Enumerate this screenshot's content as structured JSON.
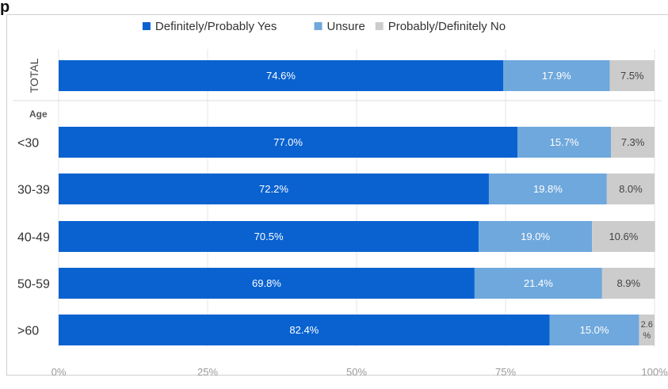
{
  "page": {
    "title_fragment": "p"
  },
  "colors": {
    "yes": "#0a62d0",
    "unsure": "#6fa8dc",
    "no": "#cccccc",
    "grid": "#e4e4e4"
  },
  "chart_data": {
    "type": "bar",
    "orientation": "horizontal",
    "stacked": true,
    "title": "",
    "legend_position": "top",
    "xlim": [
      0,
      100
    ],
    "x_ticks": [
      "0%",
      "25%",
      "50%",
      "75%",
      "100%"
    ],
    "group_labels": {
      "total": "TOTAL",
      "age": "Age"
    },
    "categories": [
      "TOTAL",
      "<30",
      "30-39",
      "40-49",
      "50-59",
      ">60"
    ],
    "series": [
      {
        "name": "Definitely/Probably Yes",
        "key": "yes",
        "values": [
          74.6,
          77.0,
          72.2,
          70.5,
          69.8,
          82.4
        ],
        "labels": [
          "74.6%",
          "77.0%",
          "72.2%",
          "70.5%",
          "69.8%",
          "82.4%"
        ]
      },
      {
        "name": "Unsure",
        "key": "unsure",
        "values": [
          17.9,
          15.7,
          19.8,
          19.0,
          21.4,
          15.0
        ],
        "labels": [
          "17.9%",
          "15.7%",
          "19.8%",
          "19.0%",
          "21.4%",
          "15.0%"
        ]
      },
      {
        "name": "Probably/Definitely No",
        "key": "no",
        "values": [
          7.5,
          7.3,
          8.0,
          10.6,
          8.9,
          2.6
        ],
        "labels": [
          "7.5%",
          "7.3%",
          "8.0%",
          "10.6%",
          "8.9%",
          "2.6 %"
        ]
      }
    ]
  }
}
